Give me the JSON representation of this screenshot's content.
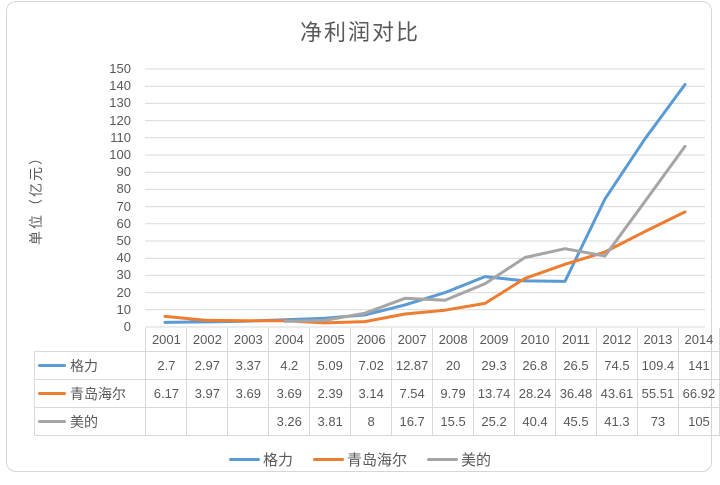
{
  "chart_data": {
    "type": "line",
    "title": "净利润对比",
    "ylabel": "单位（亿元）",
    "xlabel": "",
    "categories": [
      "2001",
      "2002",
      "2003",
      "2004",
      "2005",
      "2006",
      "2007",
      "2008",
      "2009",
      "2010",
      "2011",
      "2012",
      "2013",
      "2014"
    ],
    "series": [
      {
        "name": "格力",
        "color": "#5B9BD5",
        "values": [
          2.7,
          2.97,
          3.37,
          4.2,
          5.09,
          7.02,
          12.87,
          20,
          29.3,
          26.8,
          26.5,
          74.5,
          109.4,
          141
        ]
      },
      {
        "name": "青岛海尔",
        "color": "#ED7D31",
        "values": [
          6.17,
          3.97,
          3.69,
          3.69,
          2.39,
          3.14,
          7.54,
          9.79,
          13.74,
          28.24,
          36.48,
          43.61,
          55.51,
          66.92
        ]
      },
      {
        "name": "美的",
        "color": "#A5A5A5",
        "values": [
          null,
          null,
          null,
          3.26,
          3.81,
          8,
          16.7,
          15.5,
          25.2,
          40.4,
          45.5,
          41.3,
          73,
          105
        ]
      }
    ],
    "ylim": [
      0,
      150
    ],
    "ytick_step": 10,
    "grid": true,
    "legend_position": "bottom",
    "legend_entries": [
      "格力",
      "青岛海尔",
      "美的"
    ],
    "data_table_visible": true,
    "colors": {
      "grid": "#D9D9D9",
      "text": "#595959",
      "frame_border": "#D6D6D6"
    }
  }
}
